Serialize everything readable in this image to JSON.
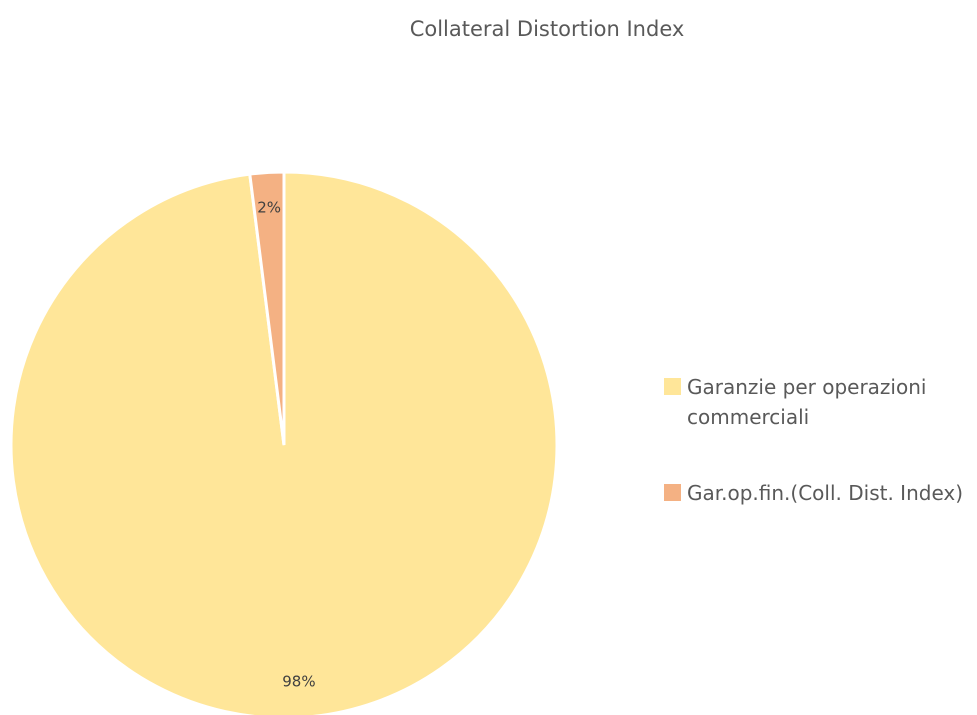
{
  "chart_data": {
    "type": "pie",
    "title": "Collateral Distortion Index",
    "categories": [
      "Garanzie per operazioni commerciali",
      "Gar.op.fin.(Coll. Dist. Index)"
    ],
    "values": [
      98,
      2
    ],
    "value_labels": [
      "98%",
      "2%"
    ],
    "colors": [
      "#ffe699",
      "#f4b183"
    ]
  }
}
